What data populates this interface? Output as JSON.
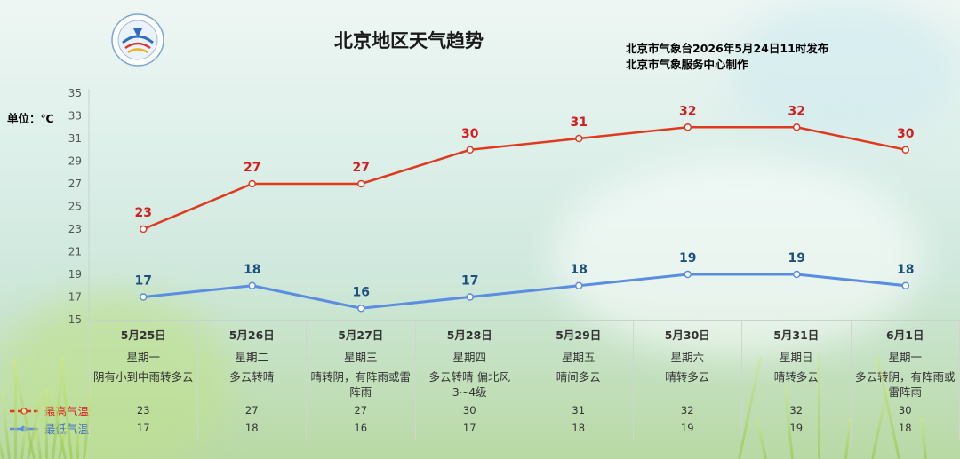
{
  "header": {
    "title": "北京地区天气趋势",
    "publisher_line1": "北京市气象台2026年5月24日11时发布",
    "publisher_line2": "北京市气象服务中心制作",
    "unit": "单位：℃"
  },
  "colors": {
    "high": "#e03a1e",
    "low": "#5b8de0",
    "high_label": "#d81c1c",
    "low_label": "#1b4f7d"
  },
  "legend": {
    "high": "最高气温",
    "low": "最低气温"
  },
  "chart_data": {
    "type": "line",
    "title": "北京地区天气趋势",
    "ylabel": "单位：℃",
    "ylim": [
      15,
      35
    ],
    "yticks": [
      15,
      17,
      19,
      21,
      23,
      25,
      27,
      29,
      31,
      33,
      35
    ],
    "categories": [
      "5月25日",
      "5月26日",
      "5月27日",
      "5月28日",
      "5月29日",
      "5月30日",
      "5月31日",
      "6月1日"
    ],
    "series": [
      {
        "name": "最高气温",
        "values": [
          23,
          27,
          27,
          30,
          31,
          32,
          32,
          30
        ]
      },
      {
        "name": "最低气温",
        "values": [
          17,
          18,
          16,
          17,
          18,
          19,
          19,
          18
        ]
      }
    ]
  },
  "table": {
    "days": [
      {
        "date": "5月25日",
        "weekday": "星期一",
        "desc": "阴有小到中雨转多云",
        "high": "23",
        "low": "17"
      },
      {
        "date": "5月26日",
        "weekday": "星期二",
        "desc": "多云转晴",
        "high": "27",
        "low": "18"
      },
      {
        "date": "5月27日",
        "weekday": "星期三",
        "desc": "晴转阴，有阵雨或雷阵雨",
        "high": "27",
        "low": "16"
      },
      {
        "date": "5月28日",
        "weekday": "星期四",
        "desc": "多云转晴 偏北风3~4级",
        "high": "30",
        "low": "17"
      },
      {
        "date": "5月29日",
        "weekday": "星期五",
        "desc": "晴间多云",
        "high": "31",
        "low": "18"
      },
      {
        "date": "5月30日",
        "weekday": "星期六",
        "desc": "晴转多云",
        "high": "32",
        "low": "19"
      },
      {
        "date": "5月31日",
        "weekday": "星期日",
        "desc": "晴转多云",
        "high": "32",
        "low": "19"
      },
      {
        "date": "6月1日",
        "weekday": "星期一",
        "desc": "多云转阴，有阵雨或雷阵雨",
        "high": "30",
        "low": "18"
      }
    ]
  }
}
